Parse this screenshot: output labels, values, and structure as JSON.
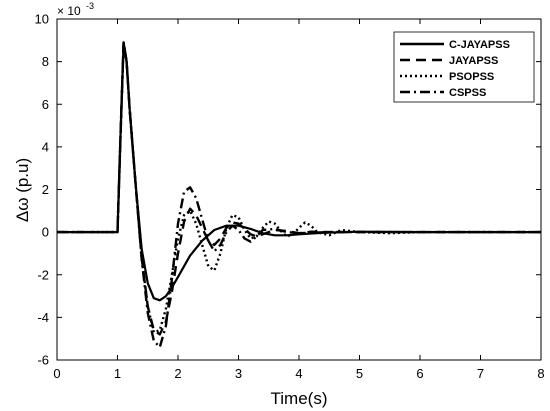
{
  "chart_data": {
    "type": "line",
    "title": "",
    "xlabel": "Time(s)",
    "ylabel": "Δω (p.u)",
    "y_multiplier": "× 10^-3",
    "y_multiplier_text": "× 10",
    "y_multiplier_exp": "-3",
    "xlim": [
      0,
      8
    ],
    "ylim": [
      -6,
      10
    ],
    "xticks": [
      "0",
      "1",
      "2",
      "3",
      "4",
      "5",
      "6",
      "7",
      "8"
    ],
    "yticks": [
      "-6",
      "-4",
      "-2",
      "0",
      "2",
      "4",
      "6",
      "8",
      "10"
    ],
    "grid": false,
    "legend_position": "top-right",
    "series": [
      {
        "name": "C-JAYAPSS",
        "style": "solid",
        "x": [
          0,
          1.0,
          1.05,
          1.1,
          1.15,
          1.2,
          1.3,
          1.4,
          1.5,
          1.6,
          1.7,
          1.8,
          1.9,
          2.0,
          2.2,
          2.4,
          2.6,
          2.8,
          3.0,
          3.2,
          3.4,
          3.6,
          3.8,
          4.0,
          4.4,
          5.0,
          6.0,
          7.0,
          8.0
        ],
        "y": [
          0,
          0,
          4.5,
          8.9,
          8.0,
          5.8,
          2.2,
          -0.8,
          -2.4,
          -3.1,
          -3.2,
          -3.0,
          -2.6,
          -2.1,
          -1.1,
          -0.4,
          0.1,
          0.3,
          0.3,
          0.15,
          -0.05,
          -0.15,
          -0.15,
          -0.1,
          -0.03,
          0.02,
          0,
          0,
          0
        ]
      },
      {
        "name": "JAYAPSS",
        "style": "dashed",
        "x": [
          0,
          1.0,
          1.05,
          1.1,
          1.15,
          1.2,
          1.3,
          1.4,
          1.5,
          1.6,
          1.7,
          1.8,
          1.9,
          2.0,
          2.1,
          2.2,
          2.3,
          2.4,
          2.5,
          2.6,
          2.7,
          2.8,
          2.9,
          3.0,
          3.1,
          3.2,
          3.3,
          3.4,
          3.6,
          3.8,
          4.0,
          4.2,
          4.5,
          5.0,
          6.0,
          7.0,
          8.0
        ],
        "y": [
          0,
          0,
          4.5,
          8.9,
          8.0,
          5.8,
          2.2,
          -1.2,
          -3.5,
          -4.6,
          -4.8,
          -4.2,
          -2.8,
          -1.0,
          0.5,
          1.1,
          0.8,
          0.2,
          -0.4,
          -0.6,
          -0.3,
          0.2,
          0.45,
          0.4,
          0.15,
          -0.1,
          -0.2,
          -0.1,
          0.1,
          0.05,
          -0.05,
          0.02,
          0,
          0,
          0,
          0,
          0
        ]
      },
      {
        "name": "PSOPSS",
        "style": "dotted",
        "x": [
          0,
          1.0,
          1.05,
          1.1,
          1.15,
          1.2,
          1.3,
          1.4,
          1.5,
          1.6,
          1.7,
          1.8,
          1.9,
          2.0,
          2.1,
          2.2,
          2.3,
          2.4,
          2.5,
          2.6,
          2.7,
          2.8,
          2.9,
          3.0,
          3.1,
          3.2,
          3.3,
          3.4,
          3.5,
          3.6,
          3.7,
          3.8,
          3.9,
          4.0,
          4.1,
          4.2,
          4.3,
          4.5,
          4.7,
          5.0,
          5.5,
          6.0,
          7.0,
          8.0
        ],
        "y": [
          0,
          0,
          4.5,
          8.9,
          8.0,
          5.8,
          2.2,
          -1.2,
          -3.5,
          -4.7,
          -4.6,
          -3.6,
          -2.0,
          -0.3,
          0.8,
          1.0,
          0.4,
          -0.6,
          -1.6,
          -1.8,
          -1.0,
          0.2,
          0.8,
          0.7,
          0.1,
          -0.3,
          -0.2,
          0.2,
          0.5,
          0.4,
          0.05,
          -0.2,
          -0.1,
          0.2,
          0.45,
          0.3,
          0.0,
          -0.15,
          0.1,
          0.0,
          -0.05,
          0,
          0,
          0
        ]
      },
      {
        "name": "CSPSS",
        "style": "dashdot",
        "x": [
          0,
          1.0,
          1.05,
          1.1,
          1.15,
          1.2,
          1.3,
          1.4,
          1.5,
          1.6,
          1.7,
          1.8,
          1.9,
          2.0,
          2.1,
          2.2,
          2.3,
          2.4,
          2.5,
          2.6,
          2.7,
          2.8,
          2.9,
          3.0,
          3.1,
          3.2,
          3.3,
          3.4,
          3.6,
          3.8,
          4.0,
          4.5,
          5.0,
          6.0,
          7.0,
          8.0
        ],
        "y": [
          0,
          0,
          4.5,
          8.9,
          8.0,
          5.8,
          2.2,
          -1.3,
          -3.8,
          -5.1,
          -5.4,
          -4.4,
          -2.2,
          0.4,
          1.9,
          2.1,
          1.6,
          0.6,
          -0.4,
          -0.9,
          -0.6,
          0.0,
          0.3,
          0.1,
          -0.3,
          -0.45,
          -0.2,
          0.1,
          0.15,
          0.0,
          -0.05,
          0.0,
          0.0,
          0,
          0,
          0
        ]
      }
    ]
  }
}
